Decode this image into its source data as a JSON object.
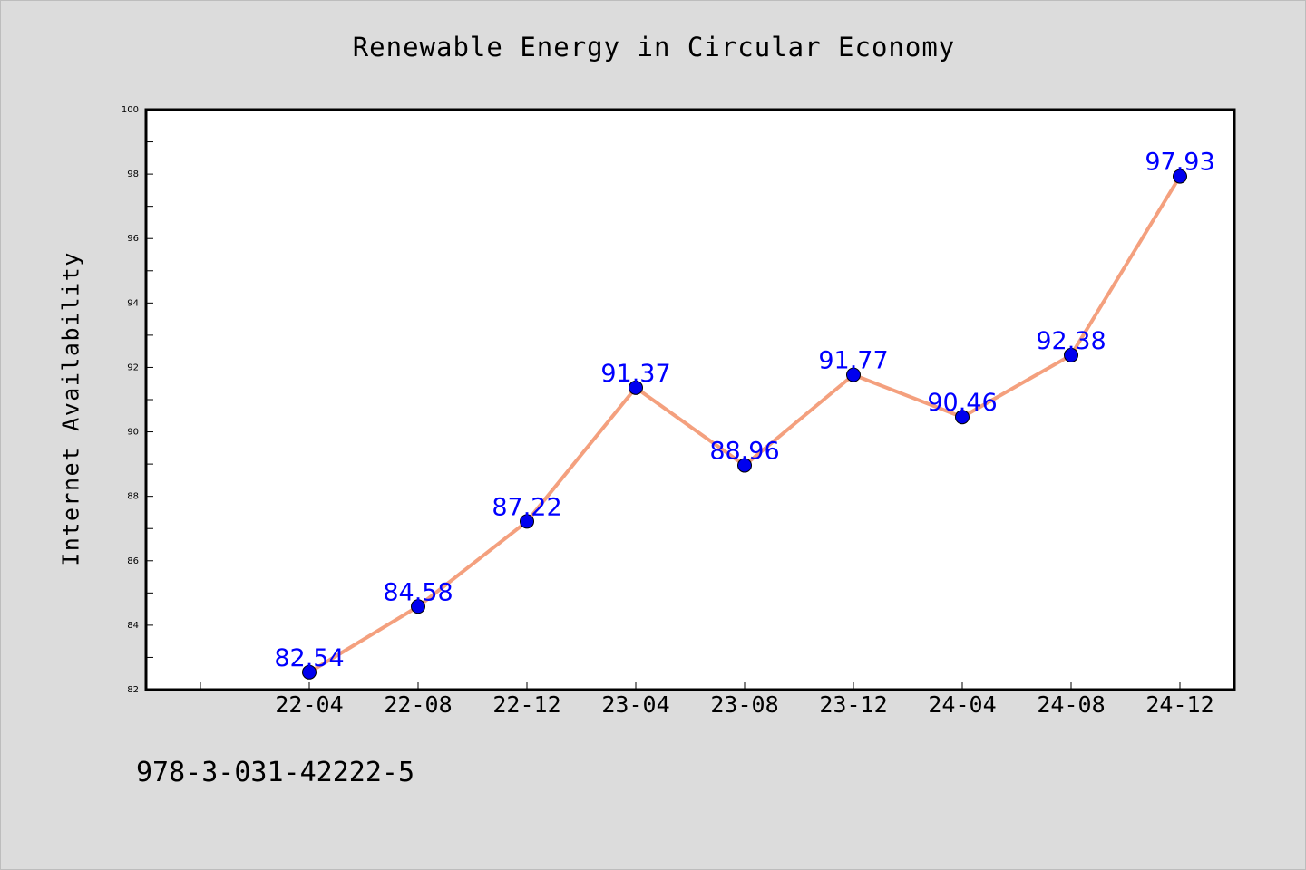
{
  "page": {
    "background": "#dcdcdc",
    "footer_code": "978-3-031-42222-5"
  },
  "chart_data": {
    "type": "line",
    "title": "Renewable Energy in Circular Economy",
    "xlabel": "",
    "ylabel": "Internet Availability",
    "categories": [
      "22-04",
      "22-08",
      "22-12",
      "23-04",
      "23-08",
      "23-12",
      "24-04",
      "24-08",
      "24-12"
    ],
    "series": [
      {
        "values": [
          82.54,
          84.58,
          87.22,
          91.37,
          88.96,
          91.77,
          90.46,
          92.38,
          97.93
        ],
        "data_labels": [
          "82.54",
          "84.58",
          "87.22",
          "91.37",
          "88.96",
          "91.77",
          "90.46",
          "92.38",
          "97.93"
        ],
        "line_color": "#f4a07e",
        "marker_color": "#0000ee",
        "label_color": "#0000ff"
      }
    ],
    "ylim": [
      82,
      100
    ],
    "yticks": [
      82,
      84,
      86,
      88,
      90,
      92,
      94,
      96,
      98,
      100
    ],
    "grid": false,
    "legend": "none"
  }
}
